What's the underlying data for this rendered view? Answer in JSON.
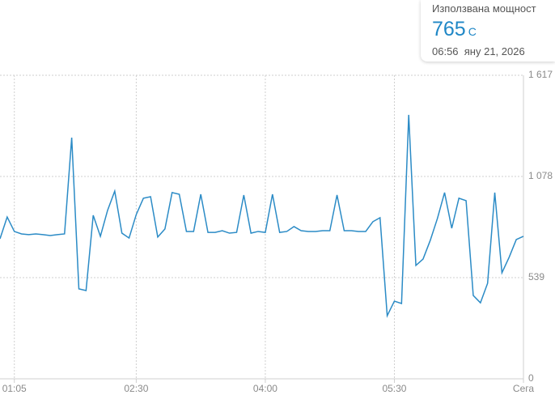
{
  "chart_data": {
    "type": "line",
    "x": [
      "00:55",
      "01:00",
      "01:05",
      "01:10",
      "01:15",
      "01:20",
      "01:25",
      "01:30",
      "01:35",
      "01:40",
      "01:45",
      "01:50",
      "01:55",
      "02:00",
      "02:05",
      "02:10",
      "02:15",
      "02:20",
      "02:25",
      "02:30",
      "02:35",
      "02:40",
      "02:45",
      "02:50",
      "02:55",
      "03:00",
      "03:05",
      "03:10",
      "03:15",
      "03:20",
      "03:25",
      "03:30",
      "03:35",
      "03:40",
      "03:45",
      "03:50",
      "03:55",
      "04:00",
      "04:05",
      "04:10",
      "04:15",
      "04:20",
      "04:25",
      "04:30",
      "04:35",
      "04:40",
      "04:45",
      "04:50",
      "04:55",
      "05:00",
      "05:05",
      "05:10",
      "05:15",
      "05:20",
      "05:25",
      "05:30",
      "05:35",
      "05:40",
      "05:45",
      "05:50",
      "05:55",
      "06:00",
      "06:05",
      "06:10",
      "06:15",
      "06:20",
      "06:25",
      "06:30",
      "06:35",
      "06:40",
      "06:45",
      "06:50",
      "06:55",
      "07:00"
    ],
    "series": [
      {
        "color": "#2b8bc6",
        "values": [
          746,
          862,
          785,
          772,
          768,
          772,
          768,
          763,
          768,
          772,
          1285,
          479,
          470,
          871,
          759,
          897,
          1000,
          776,
          750,
          875,
          962,
          970,
          755,
          798,
          992,
          983,
          785,
          785,
          983,
          780,
          780,
          789,
          776,
          780,
          979,
          776,
          785,
          780,
          983,
          780,
          785,
          811,
          789,
          785,
          785,
          789,
          789,
          979,
          789,
          789,
          785,
          785,
          837,
          858,
          336,
          414,
          401,
          1406,
          604,
          638,
          737,
          854,
          992,
          802,
          962,
          949,
          444,
          405,
          509,
          992,
          565,
          647,
          742,
          759
        ]
      }
    ],
    "xlim": [
      "00:55",
      "07:00"
    ],
    "xticks": [
      "01:05",
      "02:30",
      "04:00",
      "05:30",
      {
        "value": "07:00",
        "label": "Сега"
      }
    ],
    "ylim": [
      0,
      1617
    ],
    "yticks": [
      0,
      539,
      {
        "value": 1078,
        "label": "1 078"
      },
      {
        "value": 1617,
        "label": "1 617"
      }
    ],
    "grid": true
  },
  "tooltip": {
    "title": "Използвана мощност",
    "value": 765,
    "unit": "С",
    "time": "06:56  яну 21, 2026"
  }
}
